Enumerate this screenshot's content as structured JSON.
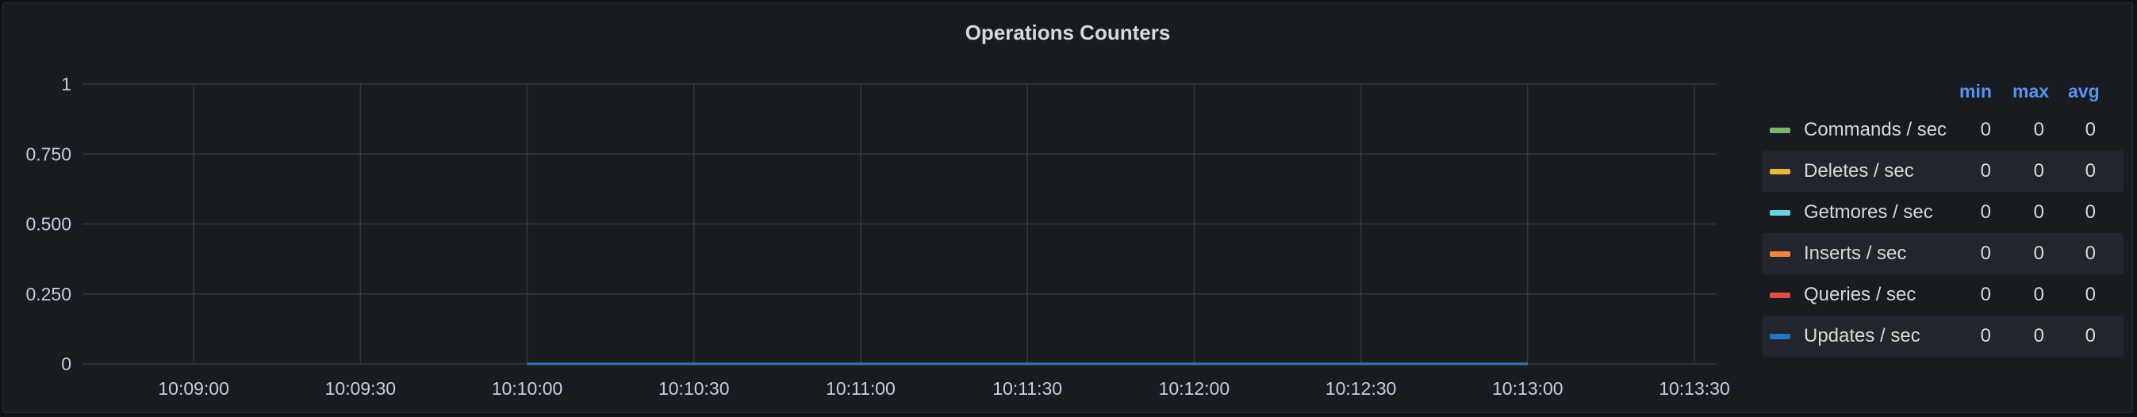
{
  "panel": {
    "title": "Operations Counters"
  },
  "chart_data": {
    "type": "line",
    "title": "Operations Counters",
    "ylim": [
      0,
      1
    ],
    "y_ticks": [
      "1",
      "0.750",
      "0.500",
      "0.250",
      "0"
    ],
    "y_tick_values": [
      1,
      0.75,
      0.5,
      0.25,
      0
    ],
    "x_ticks": [
      "10:09:00",
      "10:09:30",
      "10:10:00",
      "10:10:30",
      "10:11:00",
      "10:11:30",
      "10:12:00",
      "10:12:30",
      "10:13:00",
      "10:13:30"
    ],
    "x_range": [
      "10:08:40",
      "10:13:34"
    ],
    "data_range": [
      "10:10:00",
      "10:13:00"
    ],
    "grid": true,
    "legend_placement": "right",
    "legend_columns": [
      "min",
      "max",
      "avg"
    ],
    "series": [
      {
        "name": "Commands / sec",
        "color": "#7eb26d",
        "values": [
          0,
          0,
          0,
          0,
          0,
          0,
          0
        ],
        "min": "0",
        "max": "0",
        "avg": "0"
      },
      {
        "name": "Deletes / sec",
        "color": "#eab839",
        "values": [
          0,
          0,
          0,
          0,
          0,
          0,
          0
        ],
        "min": "0",
        "max": "0",
        "avg": "0"
      },
      {
        "name": "Getmores / sec",
        "color": "#6ed0e0",
        "values": [
          0,
          0,
          0,
          0,
          0,
          0,
          0
        ],
        "min": "0",
        "max": "0",
        "avg": "0"
      },
      {
        "name": "Inserts / sec",
        "color": "#ef843c",
        "values": [
          0,
          0,
          0,
          0,
          0,
          0,
          0
        ],
        "min": "0",
        "max": "0",
        "avg": "0"
      },
      {
        "name": "Queries / sec",
        "color": "#e24d42",
        "values": [
          0,
          0,
          0,
          0,
          0,
          0,
          0
        ],
        "min": "0",
        "max": "0",
        "avg": "0"
      },
      {
        "name": "Updates / sec",
        "color": "#1f78c1",
        "values": [
          0,
          0,
          0,
          0,
          0,
          0,
          0
        ],
        "min": "0",
        "max": "0",
        "avg": "0"
      }
    ],
    "x": [
      "10:10:00",
      "10:10:30",
      "10:11:00",
      "10:11:30",
      "10:12:00",
      "10:12:30",
      "10:13:00"
    ]
  }
}
